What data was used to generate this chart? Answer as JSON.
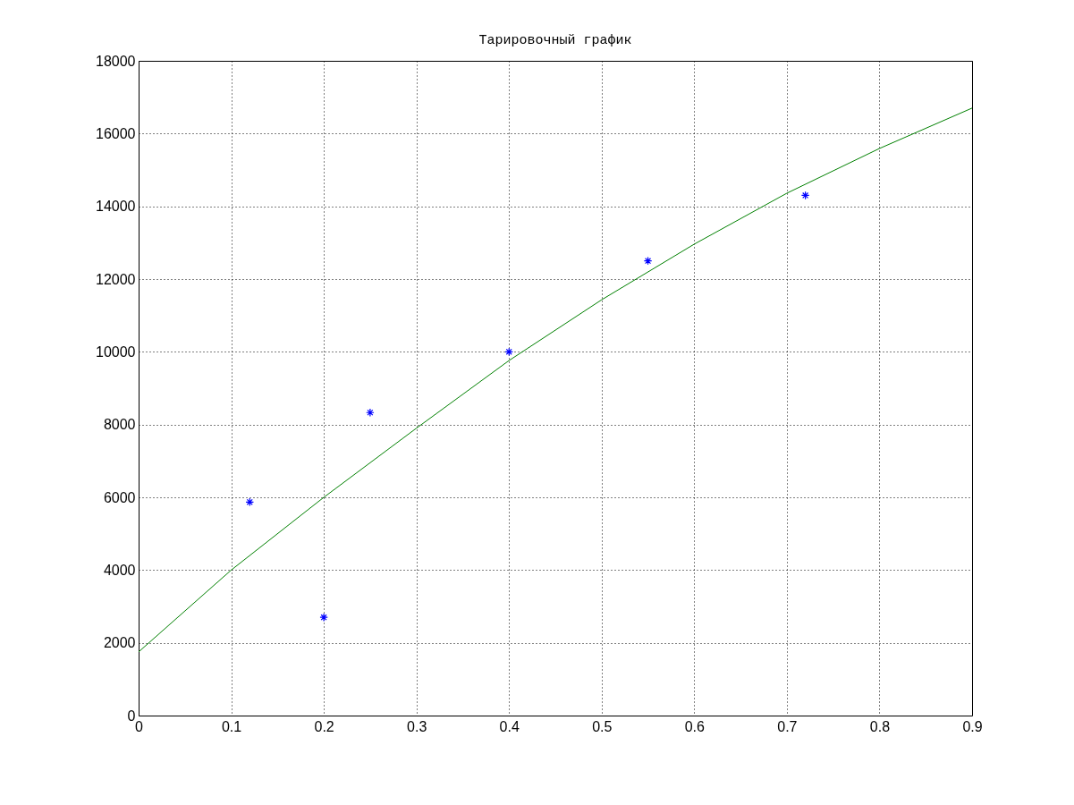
{
  "chart_data": {
    "type": "scatter",
    "title": "Тарировочный график",
    "xlim": [
      0,
      0.9
    ],
    "ylim": [
      0,
      18000
    ],
    "xticks": [
      0,
      0.1,
      0.2,
      0.3,
      0.4,
      0.5,
      0.6,
      0.7,
      0.8,
      0.9
    ],
    "yticks": [
      0,
      2000,
      4000,
      6000,
      8000,
      10000,
      12000,
      14000,
      16000,
      18000
    ],
    "grid": true,
    "series": [
      {
        "marker": "cross",
        "color": "#0000ff",
        "x": [
          0.12,
          0.2,
          0.25,
          0.4,
          0.55,
          0.72
        ],
        "values": [
          5870,
          2700,
          8330,
          10000,
          12500,
          14300
        ]
      },
      {
        "type": "line",
        "marker": "none",
        "color": "#008000",
        "x": [
          0,
          0.1,
          0.2,
          0.3,
          0.4,
          0.5,
          0.6,
          0.7,
          0.8,
          0.9
        ],
        "values": [
          1750,
          4000,
          6000,
          7900,
          9760,
          11430,
          12960,
          14360,
          15590,
          16700
        ]
      }
    ]
  }
}
